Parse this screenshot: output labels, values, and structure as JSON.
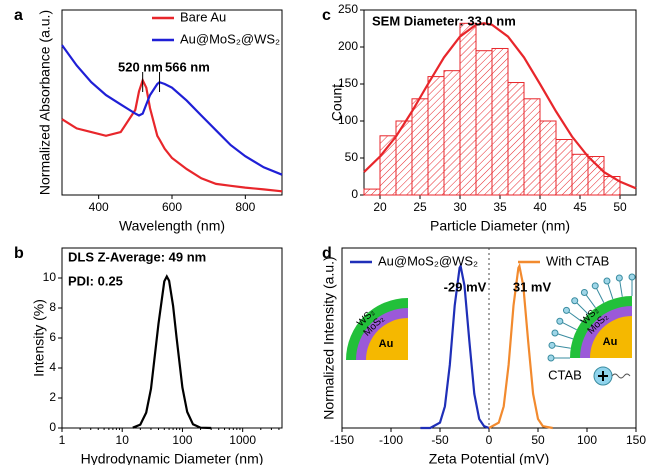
{
  "chart_data": [
    {
      "type": "line",
      "label": "a",
      "x_label": "Wavelength (nm)",
      "y_label": "Normalized Absorbance (a.u.)",
      "xlim": [
        300,
        900
      ],
      "xticks": [
        400,
        600,
        800
      ],
      "ylim": [
        0,
        1
      ],
      "x": [
        300,
        340,
        380,
        420,
        460,
        500,
        510,
        520,
        530,
        540,
        560,
        566,
        580,
        600,
        640,
        680,
        720,
        760,
        800,
        850,
        900
      ],
      "series": [
        {
          "name": "Bare Au",
          "color": "#e8262b",
          "values": [
            0.41,
            0.36,
            0.34,
            0.32,
            0.34,
            0.46,
            0.56,
            0.62,
            0.58,
            0.47,
            0.32,
            0.3,
            0.25,
            0.2,
            0.14,
            0.09,
            0.06,
            0.05,
            0.04,
            0.03,
            0.02
          ]
        },
        {
          "name": "Au@MoS₂@WS₂",
          "color": "#1f1fd6",
          "values": [
            0.81,
            0.7,
            0.61,
            0.54,
            0.49,
            0.44,
            0.43,
            0.44,
            0.49,
            0.54,
            0.6,
            0.61,
            0.6,
            0.58,
            0.51,
            0.43,
            0.35,
            0.27,
            0.21,
            0.15,
            0.11
          ]
        }
      ],
      "annotations": [
        {
          "text": "520 nm",
          "color": "#e8262b"
        },
        {
          "text": "566 nm",
          "color": "#1f1fd6"
        }
      ]
    },
    {
      "type": "line",
      "label": "b",
      "x_label": "Hydrodynamic Diameter (nm)",
      "y_label": "Intensity (%)",
      "xlim": [
        1,
        4500
      ],
      "xscale": "log",
      "xticks": [
        1,
        10,
        100,
        1000
      ],
      "ylim": [
        0,
        12
      ],
      "yticks": [
        0,
        2,
        4,
        6,
        8,
        10
      ],
      "x": [
        15,
        20,
        25,
        30,
        40,
        50,
        55,
        60,
        70,
        80,
        100,
        120,
        150,
        200,
        300
      ],
      "series": [
        {
          "color": "#000000",
          "values": [
            0.02,
            0.23,
            1.03,
            2.62,
            6.96,
            9.78,
            10.1,
            9.82,
            8.14,
            6.01,
            2.7,
            1.07,
            0.25,
            0.02,
            0
          ]
        }
      ],
      "annotations": [
        {
          "text": "DLS Z-Average: 49 nm",
          "color": "#000000"
        },
        {
          "text": "PDI: 0.25",
          "color": "#000000"
        }
      ]
    },
    {
      "type": "histogram",
      "label": "c",
      "x_label": "Particle Diameter (nm)",
      "y_label": "Count",
      "xlim": [
        18,
        52
      ],
      "xticks": [
        20,
        25,
        30,
        35,
        40,
        45,
        50
      ],
      "ylim": [
        0,
        250
      ],
      "yticks": [
        0,
        50,
        100,
        150,
        200,
        250
      ],
      "bins": [
        18,
        20,
        22,
        24,
        26,
        28,
        30,
        32,
        34,
        36,
        38,
        40,
        42,
        44,
        46,
        48,
        50
      ],
      "values": [
        8,
        80,
        100,
        130,
        160,
        168,
        232,
        195,
        198,
        152,
        130,
        100,
        75,
        55,
        52,
        25
      ],
      "color": "#e8262b",
      "fit": {
        "color": "#e8262b",
        "x": [
          18,
          20,
          22,
          24,
          26,
          28,
          30,
          32,
          33,
          34,
          36,
          38,
          40,
          42,
          44,
          46,
          48,
          50,
          52
        ],
        "values": [
          31,
          52,
          79,
          113,
          150,
          186,
          214,
          230,
          232,
          230,
          214,
          186,
          150,
          113,
          79,
          52,
          31,
          18,
          9
        ]
      },
      "annotations": [
        {
          "text": "SEM Diameter: 33.0 nm",
          "color": "#000000"
        }
      ]
    },
    {
      "type": "line",
      "label": "d",
      "x_label": "Zeta Potential (mV)",
      "y_label": "Normalized Intensity (a.u.)",
      "xlim": [
        -150,
        150
      ],
      "xticks": [
        -150,
        -100,
        -50,
        0,
        50,
        100,
        150
      ],
      "ylim": [
        0,
        1
      ],
      "series": [
        {
          "name": "Au@MoS₂@WS₂",
          "color": "#1f2fb8",
          "x": [
            -70,
            -60,
            -50,
            -45,
            -40,
            -35,
            -30,
            -29,
            -25,
            -20,
            -15,
            -10,
            -5,
            0
          ],
          "values": [
            0,
            0,
            0.03,
            0.12,
            0.35,
            0.68,
            0.89,
            0.9,
            0.79,
            0.48,
            0.19,
            0.05,
            0.01,
            0
          ]
        },
        {
          "name": "With CTAB",
          "color": "#f28a2e",
          "x": [
            0,
            10,
            15,
            20,
            25,
            30,
            31,
            35,
            40,
            45,
            50,
            55,
            65
          ],
          "values": [
            0,
            0.03,
            0.12,
            0.35,
            0.68,
            0.89,
            0.9,
            0.79,
            0.48,
            0.19,
            0.05,
            0.01,
            0
          ]
        }
      ],
      "annotations": [
        {
          "text": "-29 mV",
          "color": "#1f2fb8"
        },
        {
          "text": "31 mV",
          "color": "#f28a2e"
        }
      ],
      "inset_labels": [
        "Au",
        "MoS₂",
        "WS₂",
        "Au",
        "MoS₂",
        "WS₂",
        "CTAB"
      ]
    }
  ]
}
